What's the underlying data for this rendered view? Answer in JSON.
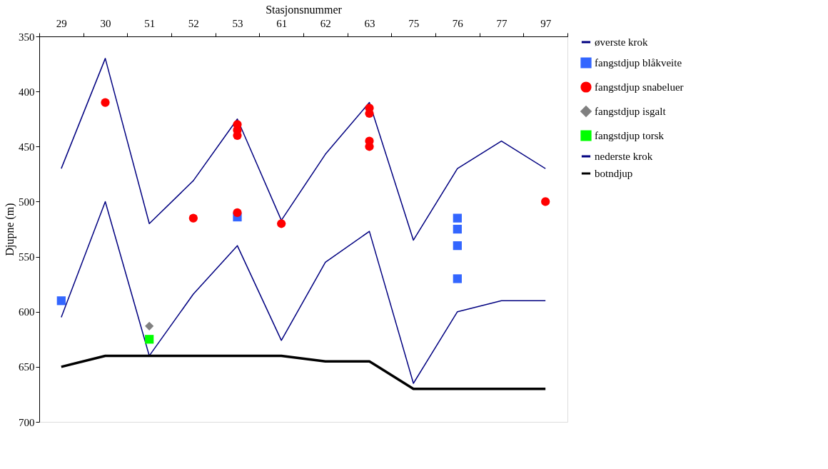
{
  "chart_data": {
    "type": "line",
    "xlabel": "Stasjonsnummer",
    "ylabel": "Djupne (m)",
    "categories": [
      "29",
      "30",
      "51",
      "52",
      "53",
      "61",
      "62",
      "63",
      "75",
      "76",
      "77",
      "97"
    ],
    "ylim": [
      700,
      350
    ],
    "yticks": [
      350,
      400,
      450,
      500,
      550,
      600,
      650,
      700
    ],
    "grid": false,
    "legend": "right",
    "marker": "none",
    "line_style": "solid",
    "series": [
      {
        "name": "øverste krok",
        "color": "#000080",
        "values": [
          470,
          370,
          520,
          481,
          425,
          517,
          457,
          410,
          535,
          470,
          445,
          470
        ]
      },
      {
        "name": "fangstdjup blåkveite",
        "type": "scatter",
        "marker": "square",
        "color": "#3366ff",
        "x": [
          "29",
          "53",
          "76",
          "76",
          "76",
          "76"
        ],
        "values": [
          590,
          514,
          515,
          525,
          540,
          570
        ]
      },
      {
        "name": "fangstdjup snabeluer",
        "type": "scatter",
        "marker": "circle",
        "color": "#ff0000",
        "x": [
          "30",
          "52",
          "53",
          "53",
          "53",
          "53",
          "61",
          "63",
          "63",
          "63",
          "63",
          "97"
        ],
        "values": [
          410,
          515,
          430,
          435,
          440,
          510,
          520,
          415,
          420,
          445,
          450,
          500
        ]
      },
      {
        "name": "fangstdjup isgalt",
        "type": "scatter",
        "marker": "diamond",
        "color": "#808080",
        "x": [
          "51"
        ],
        "values": [
          613
        ]
      },
      {
        "name": "fangstdjup torsk",
        "type": "scatter",
        "marker": "square",
        "color": "#00ff00",
        "x": [
          "51"
        ],
        "values": [
          625
        ]
      },
      {
        "name": "nederste krok",
        "color": "#000080",
        "values": [
          605,
          500,
          640,
          584,
          540,
          626,
          555,
          527,
          665,
          600,
          590,
          590
        ]
      },
      {
        "name": "botndjup",
        "color": "#000000",
        "values": [
          650,
          640,
          640,
          640,
          640,
          640,
          645,
          645,
          670,
          670,
          670,
          670
        ]
      }
    ]
  }
}
